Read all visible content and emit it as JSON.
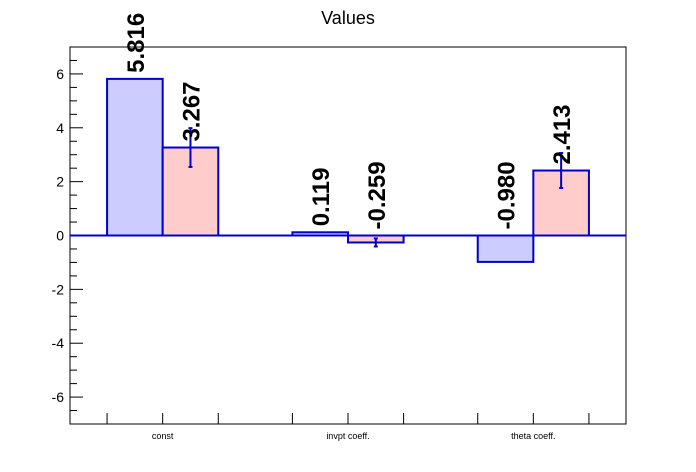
{
  "chart_data": {
    "type": "bar",
    "title": "Values",
    "xlabel": "",
    "ylabel": "",
    "categories": [
      "const",
      "invpt coeff.",
      "theta coeff."
    ],
    "ylim": [
      -7,
      7
    ],
    "yticks": [
      -6,
      -4,
      -2,
      0,
      2,
      4,
      6
    ],
    "grid": false,
    "series": [
      {
        "values": [
          5.816,
          0.119,
          -0.98
        ],
        "labels": [
          "5.816",
          "0.119",
          "-0.980"
        ],
        "errors": [
          0,
          0,
          0
        ],
        "fill": "#ccccff",
        "stroke": "#0000cc"
      },
      {
        "values": [
          3.267,
          -0.259,
          2.413
        ],
        "labels": [
          "3.267",
          "-0.259",
          "2.413"
        ],
        "errors": [
          0.72,
          0.15,
          0.65
        ],
        "fill": "#ffcccc",
        "stroke": "#0000cc"
      }
    ]
  }
}
